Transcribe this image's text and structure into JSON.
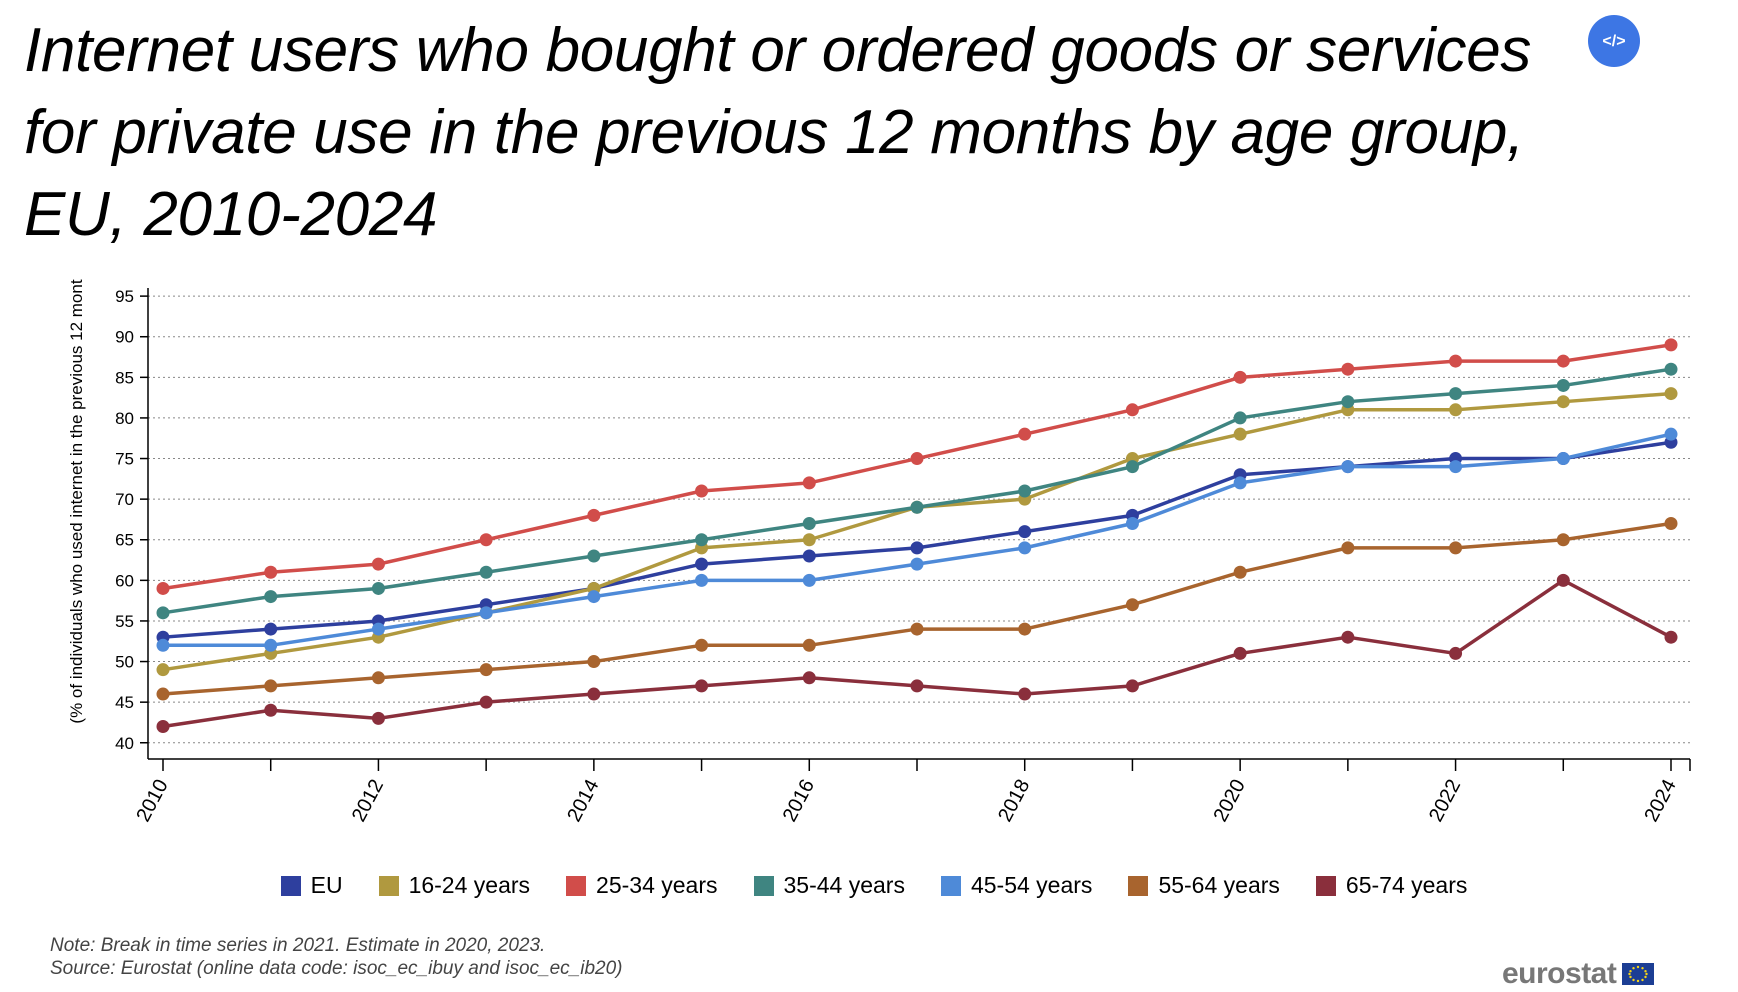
{
  "title": "Internet users who bought or ordered goods or services for private use in the previous 12 months by age group, EU, 2010-2024",
  "embed_button": {
    "icon": "code-icon",
    "glyph": "</>"
  },
  "note": "Note: Break in time series in 2021. Estimate in 2020, 2023.",
  "source": "Source: Eurostat (online data code: isoc_ec_ibuy and isoc_ec_ib20)",
  "brand": "eurostat",
  "chart_data": {
    "type": "line",
    "title": "Internet users who bought or ordered goods or services for private use in the previous 12 months by age group, EU, 2010-2024",
    "ylabel": "(% of individuals who used internet in the previous 12 mont",
    "xlabel": "",
    "ylim": [
      38,
      96
    ],
    "yticks": [
      40,
      45,
      50,
      55,
      60,
      65,
      70,
      75,
      80,
      85,
      90,
      95
    ],
    "xlim": [
      2010,
      2024
    ],
    "xticks": [
      2010,
      2012,
      2014,
      2016,
      2018,
      2020,
      2022,
      2024
    ],
    "grid": true,
    "legend_position": "bottom",
    "x": [
      2010,
      2011,
      2012,
      2013,
      2014,
      2015,
      2016,
      2017,
      2018,
      2019,
      2020,
      2021,
      2022,
      2023,
      2024
    ],
    "series": [
      {
        "name": "EU",
        "color": "#2e3f9e",
        "values": [
          53,
          54,
          55,
          57,
          59,
          62,
          63,
          64,
          66,
          68,
          73,
          74,
          75,
          75,
          77
        ]
      },
      {
        "name": "16-24 years",
        "color": "#b0993f",
        "values": [
          49,
          51,
          53,
          56,
          59,
          64,
          65,
          69,
          70,
          75,
          78,
          81,
          81,
          82,
          83
        ]
      },
      {
        "name": "25-34 years",
        "color": "#d14d4a",
        "values": [
          59,
          61,
          62,
          65,
          68,
          71,
          72,
          75,
          78,
          81,
          85,
          86,
          87,
          87,
          89
        ]
      },
      {
        "name": "35-44 years",
        "color": "#3f8581",
        "values": [
          56,
          58,
          59,
          61,
          63,
          65,
          67,
          69,
          71,
          74,
          80,
          82,
          83,
          84,
          86
        ]
      },
      {
        "name": "45-54 years",
        "color": "#4e8ad8",
        "values": [
          52,
          52,
          54,
          56,
          58,
          60,
          60,
          62,
          64,
          67,
          72,
          74,
          74,
          75,
          78
        ]
      },
      {
        "name": "55-64 years",
        "color": "#a8642e",
        "values": [
          46,
          47,
          48,
          49,
          50,
          52,
          52,
          54,
          54,
          57,
          61,
          64,
          64,
          65,
          67
        ]
      },
      {
        "name": "65-74 years",
        "color": "#8a2f3c",
        "values": [
          42,
          44,
          43,
          45,
          46,
          47,
          48,
          47,
          46,
          47,
          51,
          53,
          51,
          60,
          53
        ]
      }
    ]
  }
}
